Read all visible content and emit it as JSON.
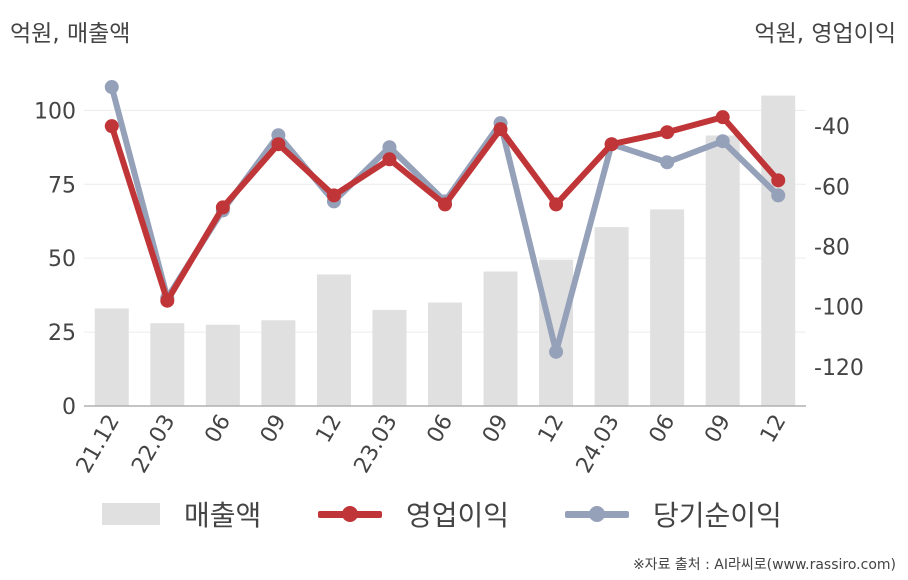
{
  "units": {
    "left": "억원, 매출액",
    "right": "억원, 영업이익"
  },
  "source": "※자료 출처 : AI라씨로(www.rassiro.com)",
  "colors": {
    "revenue": "#e0e0e0",
    "operating_profit": "#c03537",
    "net_income": "#95a0b9",
    "grid": "#ececec",
    "axis": "#b0b0b0"
  },
  "legend": [
    {
      "label": "매출액",
      "kind": "bar",
      "color": "#e0e0e0"
    },
    {
      "label": "영업이익",
      "kind": "line",
      "color": "#c03537"
    },
    {
      "label": "당기순이익",
      "kind": "line",
      "color": "#95a0b9"
    }
  ],
  "chart_data": {
    "type": "bar",
    "categories": [
      "21.12",
      "22.03",
      "06",
      "09",
      "12",
      "23.03",
      "06",
      "09",
      "12",
      "24.03",
      "06",
      "09",
      "12"
    ],
    "left_axis": {
      "label": "억원, 매출액",
      "ylim": [
        0,
        115
      ],
      "ticks": [
        0,
        25,
        50,
        75,
        100
      ]
    },
    "right_axis": {
      "label": "억원, 영업이익",
      "ylim": [
        -133,
        -20
      ],
      "ticks": [
        -40,
        -60,
        -80,
        -100,
        -120
      ]
    },
    "series": [
      {
        "name": "매출액",
        "type": "bar",
        "axis": "left",
        "color": "#e0e0e0",
        "values": [
          33,
          28,
          27.5,
          29,
          44.5,
          32.5,
          35,
          45.5,
          49.5,
          60.5,
          66.5,
          91.5,
          105
        ]
      },
      {
        "name": "영업이익",
        "type": "line",
        "axis": "right",
        "color": "#c03537",
        "values": [
          -40,
          -98,
          -67,
          -46,
          -63,
          -51,
          -66,
          -41,
          -66,
          -46,
          -42,
          -37,
          -58
        ]
      },
      {
        "name": "당기순이익",
        "type": "line",
        "axis": "right",
        "color": "#95a0b9",
        "values": [
          -27,
          -97,
          -68,
          -43,
          -65,
          -47,
          -65,
          -39,
          -115,
          -46,
          -52,
          -45,
          -63
        ]
      }
    ],
    "grid": true,
    "legend_position": "bottom"
  }
}
